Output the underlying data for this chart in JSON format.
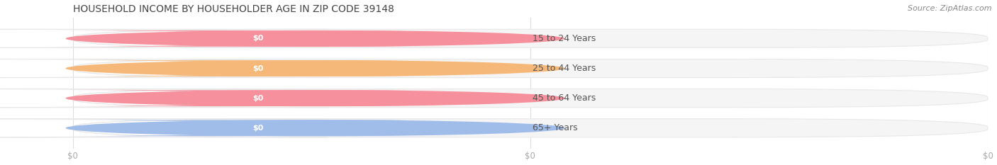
{
  "title": "HOUSEHOLD INCOME BY HOUSEHOLDER AGE IN ZIP CODE 39148",
  "source_text": "Source: ZipAtlas.com",
  "categories": [
    "15 to 24 Years",
    "25 to 44 Years",
    "45 to 64 Years",
    "65+ Years"
  ],
  "values": [
    0,
    0,
    0,
    0
  ],
  "bar_colors": [
    "#f5909c",
    "#f5b878",
    "#f5909c",
    "#a0bce8"
  ],
  "bar_edge_colors": [
    "#f5909c",
    "#f5b878",
    "#f5909c",
    "#a0bce8"
  ],
  "track_fill": "#f5f5f5",
  "track_edge": "#e8e8e8",
  "background_color": "#ffffff",
  "title_fontsize": 10,
  "title_color": "#444444",
  "source_fontsize": 8,
  "source_color": "#888888",
  "bar_height": 0.62,
  "tick_label_color": "#aaaaaa",
  "x_tick_labels": [
    "$0",
    "$0",
    "$0"
  ],
  "x_tick_positions": [
    0.0,
    0.5,
    1.0
  ],
  "grid_color": "#dddddd"
}
